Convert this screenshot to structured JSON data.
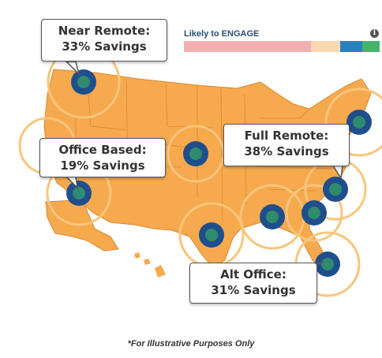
{
  "legend": {
    "title": "Likely to ENGAGE",
    "info_icon": "info-icon",
    "segments": [
      {
        "color": "#f2b0ae",
        "fraction": 0.65
      },
      {
        "color": "#fbd9b0",
        "fraction": 0.15
      },
      {
        "color": "#2a7fc0",
        "fraction": 0.11
      },
      {
        "color": "#44b36b",
        "fraction": 0.09
      }
    ]
  },
  "callouts": [
    {
      "id": "near-remote",
      "line1": "Near Remote:",
      "line2": "33% Savings"
    },
    {
      "id": "office-based",
      "line1": "Office Based:",
      "line2": "19% Savings"
    },
    {
      "id": "full-remote",
      "line1": "Full Remote:",
      "line2": "38% Savings"
    },
    {
      "id": "alt-office",
      "line1": "Alt Office:",
      "line2": "31% Savings"
    }
  ],
  "footnote": "*For Illustrative Purposes Only",
  "colors": {
    "land": "#f7a94e",
    "state_border": "#d98a30",
    "ring": "#f9c57b",
    "marker_outer": "#1f4e8c",
    "marker_inner": "#2e8b6e"
  }
}
